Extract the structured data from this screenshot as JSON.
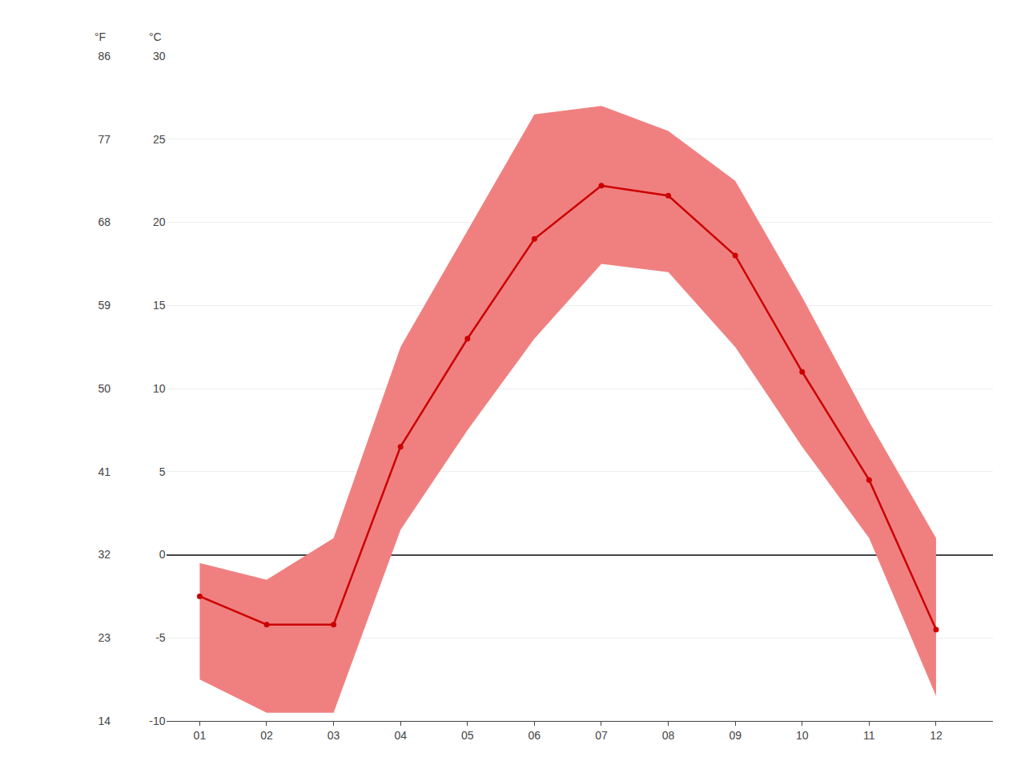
{
  "chart_data": {
    "type": "line",
    "x": [
      1,
      2,
      3,
      4,
      5,
      6,
      7,
      8,
      9,
      10,
      11,
      12
    ],
    "xlim": [
      0.5,
      12.85
    ],
    "xticks": [
      {
        "value": 1,
        "label": "01"
      },
      {
        "value": 2,
        "label": "02"
      },
      {
        "value": 3,
        "label": "03"
      },
      {
        "value": 4,
        "label": "04"
      },
      {
        "value": 5,
        "label": "05"
      },
      {
        "value": 6,
        "label": "06"
      },
      {
        "value": 7,
        "label": "07"
      },
      {
        "value": 8,
        "label": "08"
      },
      {
        "value": 9,
        "label": "09"
      },
      {
        "value": 10,
        "label": "10"
      },
      {
        "value": 11,
        "label": "11"
      },
      {
        "value": 12,
        "label": "12"
      }
    ],
    "ylim": [
      -10,
      30
    ],
    "yticks": [
      -10,
      -5,
      0,
      5,
      10,
      15,
      20,
      25,
      30
    ],
    "ylabel": "°C",
    "y2lim": [
      14,
      86
    ],
    "y2ticks": [
      14,
      23,
      32,
      41,
      50,
      59,
      68,
      77,
      86
    ],
    "y2label": "°F",
    "grid": true,
    "series": [
      {
        "type": "band",
        "color": "#f08080",
        "values": [
          -7.5,
          -9.5,
          -9.5,
          1.5,
          7.5,
          13.0,
          17.5,
          17.0,
          12.5,
          6.5,
          1.0,
          -8.5
        ]
      },
      {
        "type": "band",
        "color": "#f08080",
        "values": [
          -0.5,
          -1.5,
          1.0,
          12.5,
          19.5,
          26.5,
          27.0,
          25.5,
          22.5,
          15.5,
          8.0,
          1.0
        ]
      },
      {
        "type": "line",
        "color": "#cc0000",
        "marker": "circle",
        "values": [
          -2.5,
          -4.2,
          -4.2,
          6.5,
          13.0,
          19.0,
          22.2,
          21.6,
          18.0,
          11.0,
          4.5,
          -4.5
        ]
      }
    ]
  }
}
